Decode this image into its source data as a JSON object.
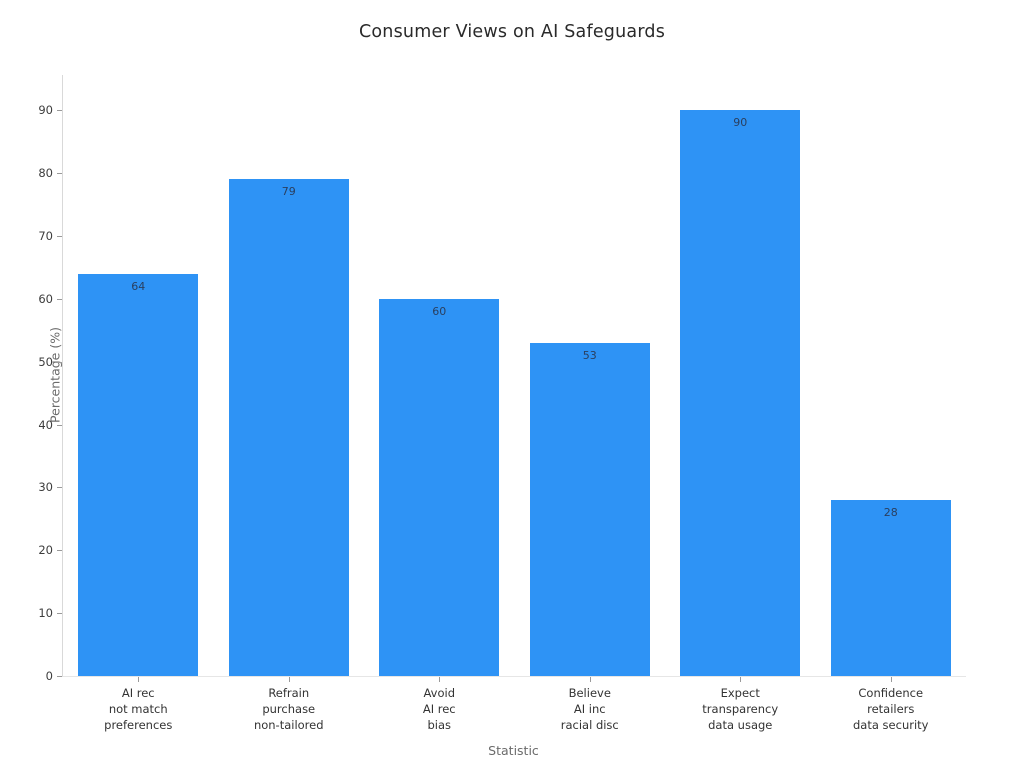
{
  "chart_data": {
    "type": "bar",
    "title": "Consumer Views on AI Safeguards",
    "xlabel": "Statistic",
    "ylabel": "Percentage (%)",
    "categories": [
      "AI rec\nnot match\npreferences",
      "Refrain\npurchase\nnon-tailored",
      "Avoid\nAI rec\nbias",
      "Believe\nAI inc\nracial disc",
      "Expect\ntransparency\ndata usage",
      "Confidence\nretailers\ndata security"
    ],
    "values": [
      64,
      79,
      60,
      53,
      90,
      28
    ],
    "value_labels": [
      "64",
      "79",
      "60",
      "53",
      "90",
      "28"
    ],
    "yticks": [
      0,
      10,
      20,
      30,
      40,
      50,
      60,
      70,
      80,
      90
    ],
    "ylim": [
      0,
      95.6
    ],
    "grid": false,
    "legend": false,
    "bar_color": "#2e93f5",
    "value_label_color": "#2a3f5f",
    "axis_line_color": "#d9d9d9",
    "tick_color": "#9a9a9a"
  }
}
